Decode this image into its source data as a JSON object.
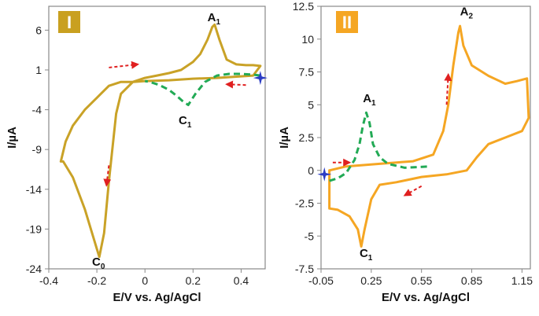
{
  "chart_data": [
    {
      "type": "line",
      "panel": "I",
      "badge_color": "#c9a020",
      "curve_color": "#c9a227",
      "xlabel": "E/V vs. Ag/AgCl",
      "ylabel": "I/µA",
      "xlim": [
        -0.4,
        0.5
      ],
      "ylim": [
        -24,
        9
      ],
      "xticks": [
        -0.4,
        -0.2,
        0,
        0.2,
        0.4
      ],
      "xtick_labels": [
        "-0.4",
        "-0.2",
        "0",
        "0.2",
        "0.4"
      ],
      "yticks": [
        6,
        1,
        -4,
        -9,
        -14,
        -19,
        -24
      ],
      "ytick_labels": [
        "6",
        "1",
        "-4",
        "-9",
        "-14",
        "-19",
        "-24"
      ],
      "series": [
        {
          "name": "solid",
          "style": "solid",
          "x": [
            -0.35,
            -0.34,
            -0.3,
            -0.25,
            -0.2,
            -0.19,
            -0.17,
            -0.15,
            -0.12,
            -0.1,
            -0.05,
            0,
            0.05,
            0.1,
            0.15,
            0.2,
            0.23,
            0.26,
            0.28,
            0.29,
            0.31,
            0.34,
            0.38,
            0.42,
            0.45,
            0.48,
            0.45,
            0.4,
            0.3,
            0.2,
            0.1,
            0,
            -0.05,
            -0.1,
            -0.15,
            -0.2,
            -0.25,
            -0.3,
            -0.33,
            -0.35
          ],
          "y": [
            -10.5,
            -10.5,
            -12.5,
            -16.5,
            -21.5,
            -22.5,
            -19.5,
            -13.0,
            -4.5,
            -2.0,
            -0.5,
            0.0,
            0.3,
            0.6,
            1.0,
            2.0,
            3.0,
            4.8,
            6.4,
            6.7,
            4.8,
            2.3,
            1.7,
            1.6,
            1.6,
            1.5,
            0.3,
            0.2,
            0.0,
            -0.1,
            -0.3,
            -0.4,
            -0.5,
            -0.5,
            -1.0,
            -2.5,
            -4.0,
            -6.0,
            -8.0,
            -10.5
          ]
        },
        {
          "name": "dashed",
          "style": "dashed",
          "x": [
            0.48,
            0.45,
            0.4,
            0.35,
            0.3,
            0.25,
            0.21,
            0.18,
            0.16,
            0.13,
            0.1,
            0.06,
            0.02,
            0.0
          ],
          "y": [
            0.3,
            0.4,
            0.5,
            0.5,
            0.3,
            -0.5,
            -2.0,
            -3.4,
            -3.0,
            -2.2,
            -1.5,
            -0.9,
            -0.5,
            -0.4
          ]
        }
      ],
      "peaks": [
        {
          "label": "A",
          "sub": "1",
          "x": 0.26,
          "y": 7.1
        },
        {
          "label": "C",
          "sub": "1",
          "x": 0.14,
          "y": -5.8
        },
        {
          "label": "C",
          "sub": "0",
          "x": -0.22,
          "y": -23.6
        }
      ],
      "arrows": [
        {
          "x1": -0.15,
          "y1": 1.3,
          "x2": -0.03,
          "y2": 1.7
        },
        {
          "x1": 0.42,
          "y1": -0.9,
          "x2": 0.34,
          "y2": -0.8
        },
        {
          "x1": -0.15,
          "y1": -11.0,
          "x2": -0.16,
          "y2": -13.5
        }
      ],
      "start_marker": {
        "x": 0.48,
        "y": 0.0
      }
    },
    {
      "type": "line",
      "panel": "II",
      "badge_color": "#f5a623",
      "curve_color": "#f5a623",
      "xlabel": "E/V vs. Ag/AgCl",
      "ylabel": "I/µA",
      "xlim": [
        -0.05,
        1.2
      ],
      "ylim": [
        -7.5,
        12.5
      ],
      "xticks": [
        -0.05,
        0.25,
        0.55,
        0.85,
        1.15
      ],
      "xtick_labels": [
        "-0.05",
        "0.25",
        "0.55",
        "0.85",
        "1.15"
      ],
      "yticks": [
        12.5,
        10,
        7.5,
        5,
        2.5,
        0,
        -2.5,
        -5,
        -7.5
      ],
      "ytick_labels": [
        "12.5",
        "10",
        "7.5",
        "5",
        "2.5",
        "0",
        "-2.5",
        "-5",
        "-7.5"
      ],
      "series": [
        {
          "name": "solid",
          "style": "solid",
          "x": [
            0.0,
            0.1,
            0.3,
            0.5,
            0.62,
            0.68,
            0.71,
            0.74,
            0.77,
            0.78,
            0.8,
            0.85,
            0.95,
            1.05,
            1.12,
            1.18,
            1.19,
            1.15,
            1.05,
            0.95,
            0.88,
            0.82,
            0.7,
            0.55,
            0.4,
            0.3,
            0.25,
            0.21,
            0.19,
            0.17,
            0.12,
            0.05,
            0.0,
            0.0
          ],
          "y": [
            0.0,
            0.3,
            0.5,
            0.7,
            1.2,
            3.0,
            5.0,
            8.0,
            10.5,
            11.0,
            9.5,
            8.0,
            7.2,
            6.6,
            6.8,
            7.0,
            4.0,
            3.0,
            2.5,
            2.0,
            1.0,
            0.0,
            -0.3,
            -0.5,
            -0.9,
            -1.1,
            -2.2,
            -4.5,
            -5.8,
            -4.5,
            -3.5,
            -3.0,
            -2.9,
            0.0
          ]
        },
        {
          "name": "dashed",
          "style": "dashed",
          "x": [
            0.0,
            0.05,
            0.1,
            0.15,
            0.18,
            0.2,
            0.22,
            0.24,
            0.26,
            0.3,
            0.35,
            0.45,
            0.6
          ],
          "y": [
            -0.8,
            -0.6,
            -0.2,
            0.8,
            2.0,
            3.4,
            4.4,
            3.6,
            2.0,
            1.0,
            0.5,
            0.2,
            0.3
          ]
        }
      ],
      "peaks": [
        {
          "label": "A",
          "sub": "1",
          "x": 0.2,
          "y": 5.2
        },
        {
          "label": "A",
          "sub": "2",
          "x": 0.78,
          "y": 11.8
        },
        {
          "label": "C",
          "sub": "1",
          "x": 0.18,
          "y": -6.6
        }
      ],
      "arrows": [
        {
          "x1": 0.02,
          "y1": 0.6,
          "x2": 0.12,
          "y2": 0.6
        },
        {
          "x1": 0.7,
          "y1": 5.0,
          "x2": 0.71,
          "y2": 7.3
        },
        {
          "x1": 0.55,
          "y1": -1.2,
          "x2": 0.45,
          "y2": -1.9
        }
      ],
      "start_marker": {
        "x": -0.03,
        "y": -0.3
      }
    }
  ]
}
